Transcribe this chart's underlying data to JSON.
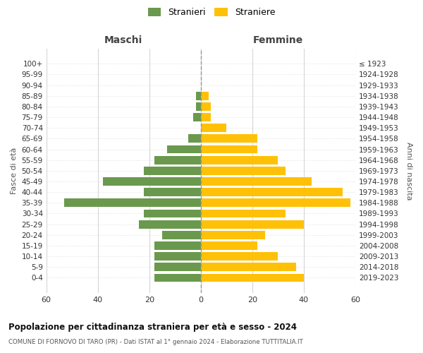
{
  "age_groups": [
    "0-4",
    "5-9",
    "10-14",
    "15-19",
    "20-24",
    "25-29",
    "30-34",
    "35-39",
    "40-44",
    "45-49",
    "50-54",
    "55-59",
    "60-64",
    "65-69",
    "70-74",
    "75-79",
    "80-84",
    "85-89",
    "90-94",
    "95-99",
    "100+"
  ],
  "birth_years": [
    "2019-2023",
    "2014-2018",
    "2009-2013",
    "2004-2008",
    "1999-2003",
    "1994-1998",
    "1989-1993",
    "1984-1988",
    "1979-1983",
    "1974-1978",
    "1969-1973",
    "1964-1968",
    "1959-1963",
    "1954-1958",
    "1949-1953",
    "1944-1948",
    "1939-1943",
    "1934-1938",
    "1929-1933",
    "1924-1928",
    "≤ 1923"
  ],
  "males": [
    18,
    18,
    18,
    18,
    15,
    24,
    22,
    53,
    22,
    38,
    22,
    18,
    13,
    5,
    0,
    3,
    2,
    2,
    0,
    0,
    0
  ],
  "females": [
    40,
    37,
    30,
    22,
    25,
    40,
    33,
    58,
    55,
    43,
    33,
    30,
    22,
    22,
    10,
    4,
    4,
    3,
    0,
    0,
    0
  ],
  "male_color": "#6a994e",
  "female_color": "#ffc107",
  "background_color": "#ffffff",
  "grid_color": "#d5d5d5",
  "title1": "Popolazione per cittadinanza straniera per età e sesso - 2024",
  "title2": "COMUNE DI FORNOVO DI TARO (PR) - Dati ISTAT al 1° gennaio 2024 - Elaborazione TUTTITALIA.IT",
  "xlabel_left": "Maschi",
  "xlabel_right": "Femmine",
  "ylabel_left": "Fasce di età",
  "ylabel_right": "Anni di nascita",
  "legend_male": "Stranieri",
  "legend_female": "Straniere",
  "xlim": 60
}
